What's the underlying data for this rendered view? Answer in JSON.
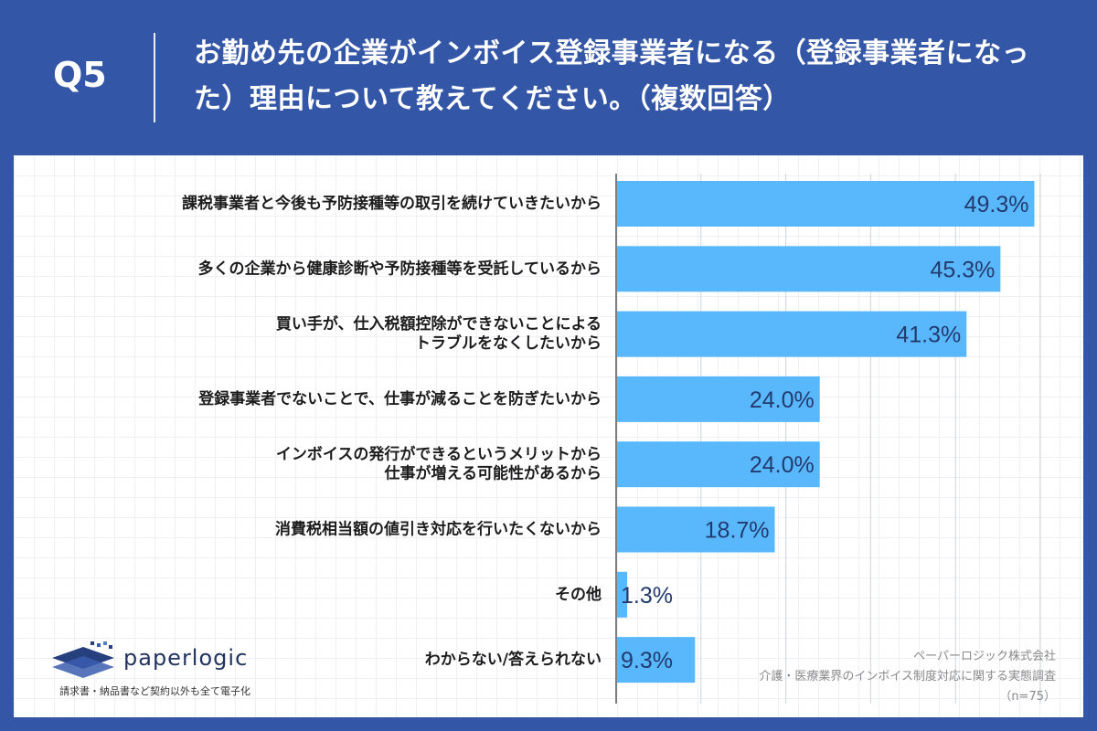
{
  "header": {
    "qnum": "Q5",
    "title": "お勤め先の企業がインボイス登録事業者になる（登録事業者になった）理由について教えてください。（複数回答）"
  },
  "chart_data": {
    "type": "bar",
    "orientation": "horizontal",
    "value_suffix": "%",
    "bar_color": "#59b8fb",
    "grid": true,
    "categories": [
      [
        "課税事業者と今後も予防接種等の取引を続けていきたいから"
      ],
      [
        "多くの企業から健康診断や予防接種等を受託しているから"
      ],
      [
        "買い手が、仕入税額控除ができないことによる",
        "トラブルをなくしたいから"
      ],
      [
        "登録事業者でないことで、仕事が減ることを防ぎたいから"
      ],
      [
        "インボイスの発行ができるというメリットから",
        "仕事が増える可能性があるから"
      ],
      [
        "消費税相当額の値引き対応を行いたくないから"
      ],
      [
        "その他"
      ],
      [
        "わからない/答えられない"
      ]
    ],
    "values": [
      49.3,
      45.3,
      41.3,
      24.0,
      24.0,
      18.7,
      1.3,
      9.3
    ],
    "xlim": [
      0,
      50
    ]
  },
  "logo": {
    "name": "paperlogic",
    "tagline": "請求書・納品書など契約以外も全て電子化"
  },
  "source": {
    "line1": "ペーパーロジック株式会社",
    "line2": "介護・医療業界のインボイス制度対応に関する実態調査",
    "line3": "（n=75）"
  }
}
